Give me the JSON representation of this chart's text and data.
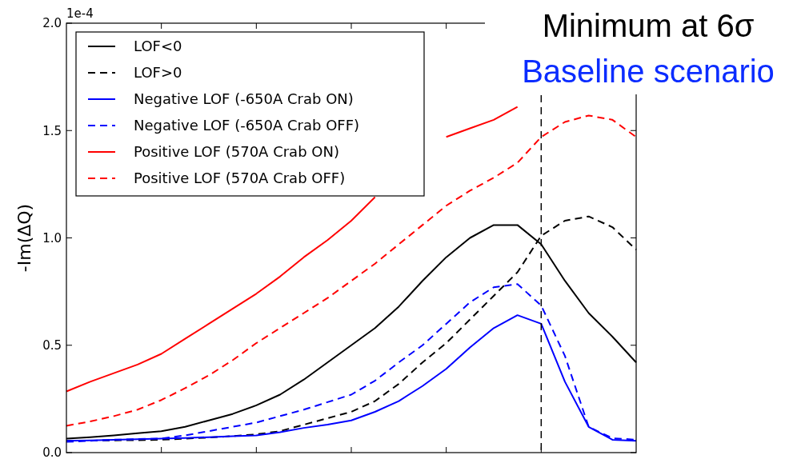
{
  "chart_data": {
    "type": "line",
    "title": "Minimum at 6σ",
    "subtitle": "Baseline scenario",
    "ylabel": "-Im(ΔQ)",
    "annotations": [
      "1e-4"
    ],
    "categories": [
      null,
      null,
      null,
      null,
      null,
      null,
      null,
      null,
      null,
      null,
      null,
      null,
      null,
      null,
      null,
      null,
      null,
      null,
      null,
      null,
      null,
      null,
      null,
      null,
      null
    ],
    "ylim": [
      0,
      2
    ],
    "yticks": [
      {
        "value": 0,
        "label": "0.0"
      },
      {
        "value": 0.5,
        "label": "0.5"
      },
      {
        "value": 1,
        "label": "1.0"
      },
      {
        "value": 1.5,
        "label": "1.5"
      },
      {
        "value": 2,
        "label": "2.0"
      }
    ],
    "tick_labels": "y",
    "legend": "top left",
    "series": [
      {
        "name": "LOF<0",
        "color": "#000000",
        "line_style": "solid",
        "values": [
          0.065,
          0.072,
          0.08,
          0.09,
          0.1,
          0.12,
          0.15,
          0.18,
          0.22,
          0.27,
          0.34,
          0.42,
          0.5,
          0.58,
          0.68,
          0.8,
          0.91,
          1.0,
          1.06,
          1.06,
          0.97,
          0.8,
          0.65,
          0.54,
          0.42
        ]
      },
      {
        "name": "LOF>0",
        "color": "#000000",
        "line_style": "dashed",
        "values": [
          0.055,
          0.056,
          0.057,
          0.058,
          0.06,
          0.065,
          0.07,
          0.077,
          0.085,
          0.1,
          0.13,
          0.16,
          0.19,
          0.24,
          0.32,
          0.42,
          0.51,
          0.62,
          0.73,
          0.84,
          1.01,
          1.08,
          1.1,
          1.05,
          0.945
        ]
      },
      {
        "name": "Negative LOF (-650A Crab ON)",
        "color": "#0000ff",
        "line_style": "solid",
        "values": [
          0.055,
          0.057,
          0.06,
          0.062,
          0.065,
          0.068,
          0.072,
          0.076,
          0.08,
          0.095,
          0.115,
          0.13,
          0.15,
          0.19,
          0.24,
          0.31,
          0.39,
          0.49,
          0.58,
          0.64,
          0.6,
          0.33,
          0.12,
          0.06,
          0.055
        ]
      },
      {
        "name": "Negative LOF (-650A Crab OFF)",
        "color": "#0000ff",
        "line_style": "dashed",
        "values": [
          0.05,
          0.055,
          0.06,
          0.063,
          0.066,
          0.08,
          0.1,
          0.12,
          0.14,
          0.17,
          0.2,
          0.235,
          0.27,
          0.335,
          0.42,
          0.5,
          0.6,
          0.7,
          0.77,
          0.785,
          0.685,
          0.45,
          0.12,
          0.067,
          0.06
        ]
      },
      {
        "name": "Positive LOF (570A Crab ON)",
        "color": "#ff0000",
        "line_style": "solid",
        "values": [
          0.285,
          0.33,
          0.37,
          0.41,
          0.46,
          0.53,
          0.6,
          0.67,
          0.74,
          0.82,
          0.91,
          0.99,
          1.08,
          1.19,
          null,
          null,
          1.47,
          1.51,
          1.55,
          1.61,
          null,
          null,
          null,
          null,
          null
        ]
      },
      {
        "name": "Positive LOF (570A Crab OFF)",
        "color": "#ff0000",
        "line_style": "dashed",
        "values": [
          0.125,
          0.145,
          0.17,
          0.2,
          0.245,
          0.3,
          0.36,
          0.43,
          0.51,
          0.58,
          0.65,
          0.72,
          0.8,
          0.88,
          0.97,
          1.06,
          1.15,
          1.22,
          1.28,
          1.35,
          1.47,
          1.54,
          1.57,
          1.55,
          1.47
        ]
      }
    ]
  }
}
